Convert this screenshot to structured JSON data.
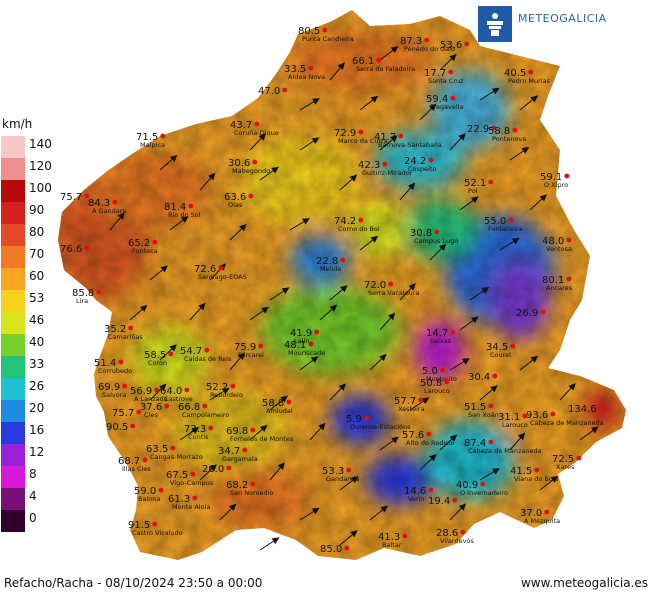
{
  "brand": {
    "name": "METEOGALICIA"
  },
  "legend": {
    "unit": "km/h",
    "stops": [
      {
        "label": "140",
        "color": "#f8c8c8"
      },
      {
        "label": "120",
        "color": "#f08f8f"
      },
      {
        "label": "100",
        "color": "#b40a0a"
      },
      {
        "label": "90",
        "color": "#d61f1f"
      },
      {
        "label": "80",
        "color": "#e24a2a"
      },
      {
        "label": "70",
        "color": "#ee7a22"
      },
      {
        "label": "60",
        "color": "#f5a623"
      },
      {
        "label": "53",
        "color": "#f7d21c"
      },
      {
        "label": "46",
        "color": "#d8e41a"
      },
      {
        "label": "40",
        "color": "#77cf2a"
      },
      {
        "label": "33",
        "color": "#23c37a"
      },
      {
        "label": "26",
        "color": "#20c0d4"
      },
      {
        "label": "20",
        "color": "#1f8ce0"
      },
      {
        "label": "16",
        "color": "#2a3ae0"
      },
      {
        "label": "12",
        "color": "#9b21d8"
      },
      {
        "label": "8",
        "color": "#d81ad8"
      },
      {
        "label": "4",
        "color": "#7a0f7a"
      },
      {
        "label": "0",
        "color": "#2e002e"
      }
    ]
  },
  "footer": {
    "caption": "Refacho/Racha - 08/10/2024 23:50 a 00:00",
    "website": "www.meteogalicia.es"
  },
  "stations": [
    {
      "value": "80.5",
      "place": "Punta Candieira"
    },
    {
      "value": "87.3",
      "place": "Penedo do Galo"
    },
    {
      "value": "53.6",
      "place": ""
    },
    {
      "value": "66.1",
      "place": "Serra da Faladoira"
    },
    {
      "value": "33.5",
      "place": "Aldea Nova"
    },
    {
      "value": "17.7",
      "place": "Santa Cruz"
    },
    {
      "value": "40.5",
      "place": "Pedro Murias"
    },
    {
      "value": "47.0",
      "place": ""
    },
    {
      "value": "59.4",
      "place": "Fragavella"
    },
    {
      "value": "43.7",
      "place": "Coruña-Dique"
    },
    {
      "value": "72.9",
      "place": "Marco da Curra"
    },
    {
      "value": "41.7",
      "place": "Barnova-Santaballa"
    },
    {
      "value": "22.9",
      "place": ""
    },
    {
      "value": "58.8",
      "place": "Pontenova"
    },
    {
      "value": "71.5",
      "place": "Malpica"
    },
    {
      "value": "30.6",
      "place": "Mabegondo"
    },
    {
      "value": "42.3",
      "place": "Guitiriz-Mirador"
    },
    {
      "value": "24.2",
      "place": "Cospeito"
    },
    {
      "value": "59.1",
      "place": "O Xipro"
    },
    {
      "value": "52.1",
      "place": "Pol"
    },
    {
      "value": "75.7",
      "place": ""
    },
    {
      "value": "84.3",
      "place": "A Gandara"
    },
    {
      "value": "81.4",
      "place": "Río do Sol"
    },
    {
      "value": "63.6",
      "place": "Olas"
    },
    {
      "value": "55.0",
      "place": "Fontaneira"
    },
    {
      "value": "65.2",
      "place": "Fonteca"
    },
    {
      "value": "74.2",
      "place": "Corno do Boi"
    },
    {
      "value": "30.8",
      "place": "Campus Lugo"
    },
    {
      "value": "48.0",
      "place": "Ventosa"
    },
    {
      "value": "76.6",
      "place": ""
    },
    {
      "value": "72.6",
      "place": "Santiago-EOAS"
    },
    {
      "value": "22.8",
      "place": "Melide"
    },
    {
      "value": "80.1",
      "place": "Ancares"
    },
    {
      "value": "85.8",
      "place": "Lira"
    },
    {
      "value": "72.0",
      "place": "Serra Vacaloura"
    },
    {
      "value": "35.2",
      "place": "Camariñas"
    },
    {
      "value": "26.9",
      "place": ""
    },
    {
      "value": "41.9",
      "place": "Lalín"
    },
    {
      "value": "14.7",
      "place": "Seixas"
    },
    {
      "value": "58.5",
      "place": "Coron"
    },
    {
      "value": "54.7",
      "place": "Caldas de Reis"
    },
    {
      "value": "75.9",
      "place": "Forcarei"
    },
    {
      "value": "48.1",
      "place": "Mouriscade"
    },
    {
      "value": "34.5",
      "place": "Courel"
    },
    {
      "value": "51.4",
      "place": "Corrubedo"
    },
    {
      "value": "5.0",
      "place": "Montouto"
    },
    {
      "value": "30.4",
      "place": ""
    },
    {
      "value": "50.8",
      "place": "Larouco"
    },
    {
      "value": "69.9",
      "place": "Salvora"
    },
    {
      "value": "56.9",
      "place": "A Lanzada"
    },
    {
      "value": "64.0",
      "place": "Castrove"
    },
    {
      "value": "52.2",
      "place": "Rebordelo"
    },
    {
      "value": "57.7",
      "place": "Xesteira"
    },
    {
      "value": "51.5",
      "place": "San Xoán"
    },
    {
      "value": "37.6",
      "place": "Cíes"
    },
    {
      "value": "66.8",
      "place": "Campolameiro"
    },
    {
      "value": "58.8",
      "place": "Amiudal"
    },
    {
      "value": "31.1",
      "place": "Larouco"
    },
    {
      "value": "93.6",
      "place": "Cabeza de Manzaneda"
    },
    {
      "value": "134.6",
      "place": ""
    },
    {
      "value": "75.7",
      "place": ""
    },
    {
      "value": "90.5",
      "place": ""
    },
    {
      "value": "72.3",
      "place": "Cuntis"
    },
    {
      "value": "69.8",
      "place": "Fornelos de Montes"
    },
    {
      "value": "5.9",
      "place": "Ourense-Estacións"
    },
    {
      "value": "57.6",
      "place": "Alto do Rodicio"
    },
    {
      "value": "87.4",
      "place": "Cabeza de Manzaneda"
    },
    {
      "value": "63.5",
      "place": "Cangas-Morrazo"
    },
    {
      "value": "34.7",
      "place": "Gargamala"
    },
    {
      "value": "68.7",
      "place": "Illas Cíes"
    },
    {
      "value": "67.5",
      "place": "Vigo-Campus"
    },
    {
      "value": "26.0",
      "place": ""
    },
    {
      "value": "53.3",
      "place": "Gandarela"
    },
    {
      "value": "72.5",
      "place": "Xares"
    },
    {
      "value": "41.5",
      "place": "Viana do Bolo"
    },
    {
      "value": "59.0",
      "place": "Baiona"
    },
    {
      "value": "68.2",
      "place": "San Nomedio"
    },
    {
      "value": "40.9",
      "place": "O Invernadeiro"
    },
    {
      "value": "61.3",
      "place": "Monte Aloia"
    },
    {
      "value": "14.6",
      "place": "Verín"
    },
    {
      "value": "19.4",
      "place": ""
    },
    {
      "value": "37.0",
      "place": "A Mezquita"
    },
    {
      "value": "91.5",
      "place": "Castro Vicaludo"
    },
    {
      "value": "28.6",
      "place": "Vilardevós"
    },
    {
      "value": "85.0",
      "place": ""
    },
    {
      "value": "41.3",
      "place": "Baltar"
    }
  ]
}
